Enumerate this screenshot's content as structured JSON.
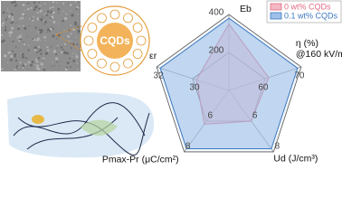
{
  "chart_data": {
    "type": "radar",
    "annotation": "CQDs",
    "axes": [
      {
        "label": [
          "Eb"
        ],
        "lim": [
          0,
          400
        ],
        "ticks": [
          200,
          400
        ]
      },
      {
        "label": [
          "η (%)",
          "@160 kV/mm"
        ],
        "lim": [
          50,
          70
        ],
        "ticks": [
          60,
          70
        ]
      },
      {
        "label": [
          "Ud (J/cm³)"
        ],
        "lim": [
          4,
          8
        ],
        "ticks": [
          6,
          8
        ]
      },
      {
        "label": [
          "Pmax-Pr (μC/cm²)"
        ],
        "lim": [
          4,
          8
        ],
        "ticks": [
          6,
          8
        ]
      },
      {
        "label": [
          "εr"
        ],
        "lim": [
          28,
          32
        ],
        "ticks": [
          30,
          32
        ]
      }
    ],
    "series": [
      {
        "name": "0 wt% CQDs",
        "color": "#e06b82",
        "fill": "#f4b8c4",
        "values": [
          350,
          61,
          6,
          6.2,
          29.8
        ]
      },
      {
        "name": "0.1 wt% CQDs",
        "color": "#3b78c2",
        "fill": "#9fc0e8",
        "values": [
          380,
          69,
          7.8,
          7.8,
          31.8
        ]
      }
    ],
    "legend": "top-right"
  }
}
